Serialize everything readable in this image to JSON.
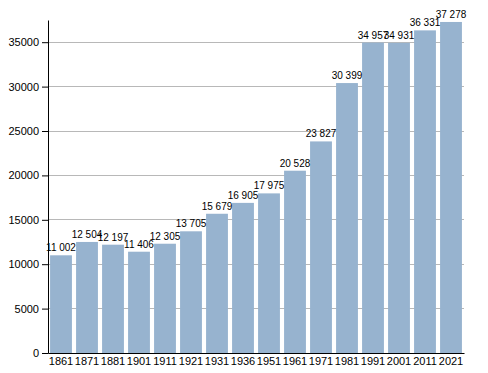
{
  "chart_data": {
    "type": "bar",
    "categories": [
      "1861",
      "1871",
      "1881",
      "1901",
      "1911",
      "1921",
      "1931",
      "1936",
      "1951",
      "1961",
      "1971",
      "1981",
      "1991",
      "2001",
      "2011",
      "2021"
    ],
    "values": [
      11002,
      12504,
      12197,
      11406,
      12305,
      13705,
      15679,
      16905,
      17975,
      20528,
      23827,
      30399,
      34957,
      34931,
      36331,
      37278
    ],
    "value_labels": [
      "11 002",
      "12 504",
      "12 197",
      "11 406",
      "12 305",
      "13 705",
      "15 679",
      "16 905",
      "17 975",
      "20 528",
      "23 827",
      "30 399",
      "34 957",
      "34 931",
      "36 331",
      "37 278"
    ],
    "color": "#97b3cf",
    "ylim": [
      0,
      37500
    ],
    "yticks": [
      0,
      5000,
      10000,
      15000,
      20000,
      25000,
      30000,
      35000
    ],
    "grid": true,
    "data_labels": true
  }
}
